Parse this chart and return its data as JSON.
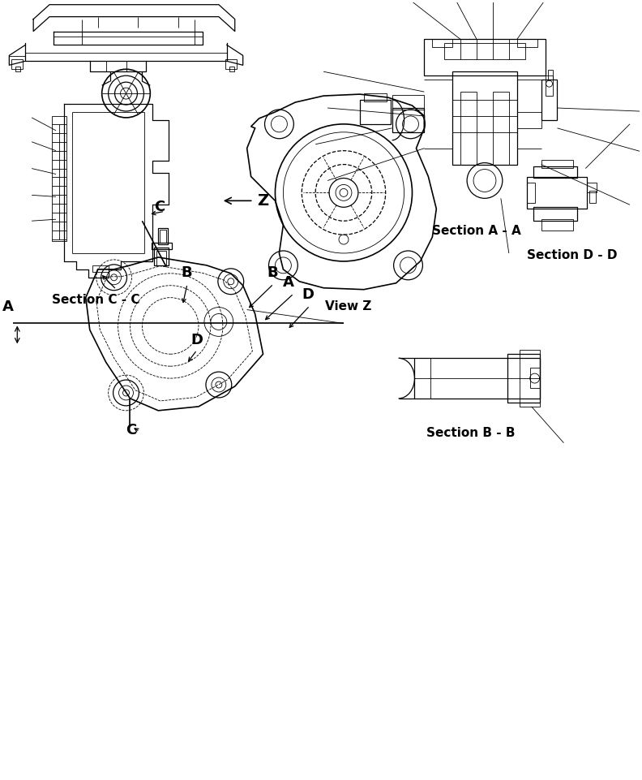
{
  "bg_color": "#ffffff",
  "line_color": "#000000",
  "labels": {
    "section_aa": "Section A - A",
    "section_bb": "Section B - B",
    "section_cc": "Section C - C",
    "section_dd": "Section D - D",
    "view_z": "View Z",
    "z": "Z",
    "A": "A",
    "B": "B",
    "C": "C",
    "D": "D"
  },
  "fontsize_label": 11,
  "fontsize_letter": 13
}
